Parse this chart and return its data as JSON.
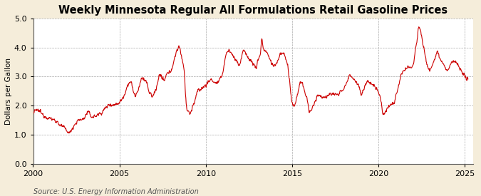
{
  "title": "Weekly Minnesota Regular All Formulations Retail Gasoline Prices",
  "ylabel": "Dollars per Gallon",
  "source": "Source: U.S. Energy Information Administration",
  "xlim": [
    2000,
    2025.5
  ],
  "ylim": [
    0.0,
    5.0
  ],
  "yticks": [
    0.0,
    1.0,
    2.0,
    3.0,
    4.0,
    5.0
  ],
  "xticks": [
    2000,
    2005,
    2010,
    2015,
    2020,
    2025
  ],
  "line_color": "#CC0000",
  "plot_bg_color": "#FFFFFF",
  "fig_bg_color": "#F5EDDA",
  "grid_color": "#AAAAAA",
  "title_fontsize": 10.5,
  "label_fontsize": 7.5,
  "tick_fontsize": 8,
  "source_fontsize": 7,
  "key_points": [
    [
      2000.0,
      1.7
    ],
    [
      2000.08,
      1.8
    ],
    [
      2000.17,
      1.82
    ],
    [
      2000.25,
      1.84
    ],
    [
      2000.33,
      1.82
    ],
    [
      2000.42,
      1.78
    ],
    [
      2000.5,
      1.72
    ],
    [
      2000.58,
      1.68
    ],
    [
      2000.67,
      1.65
    ],
    [
      2000.75,
      1.62
    ],
    [
      2000.83,
      1.6
    ],
    [
      2000.92,
      1.57
    ],
    [
      2001.0,
      1.55
    ],
    [
      2001.17,
      1.52
    ],
    [
      2001.33,
      1.48
    ],
    [
      2001.42,
      1.42
    ],
    [
      2001.58,
      1.32
    ],
    [
      2001.75,
      1.25
    ],
    [
      2001.92,
      1.18
    ],
    [
      2002.0,
      1.1
    ],
    [
      2002.08,
      1.05
    ],
    [
      2002.17,
      1.12
    ],
    [
      2002.33,
      1.28
    ],
    [
      2002.5,
      1.42
    ],
    [
      2002.67,
      1.5
    ],
    [
      2002.83,
      1.52
    ],
    [
      2003.0,
      1.62
    ],
    [
      2003.17,
      1.78
    ],
    [
      2003.33,
      1.65
    ],
    [
      2003.5,
      1.62
    ],
    [
      2003.67,
      1.66
    ],
    [
      2003.83,
      1.72
    ],
    [
      2004.0,
      1.78
    ],
    [
      2004.17,
      1.9
    ],
    [
      2004.33,
      2.0
    ],
    [
      2004.5,
      2.05
    ],
    [
      2004.67,
      2.02
    ],
    [
      2004.83,
      2.06
    ],
    [
      2005.0,
      2.12
    ],
    [
      2005.17,
      2.25
    ],
    [
      2005.33,
      2.45
    ],
    [
      2005.5,
      2.75
    ],
    [
      2005.67,
      2.82
    ],
    [
      2005.75,
      2.6
    ],
    [
      2005.83,
      2.45
    ],
    [
      2005.92,
      2.35
    ],
    [
      2006.0,
      2.42
    ],
    [
      2006.17,
      2.65
    ],
    [
      2006.25,
      2.88
    ],
    [
      2006.33,
      2.98
    ],
    [
      2006.42,
      2.9
    ],
    [
      2006.58,
      2.8
    ],
    [
      2006.67,
      2.55
    ],
    [
      2006.83,
      2.38
    ],
    [
      2006.92,
      2.3
    ],
    [
      2007.0,
      2.42
    ],
    [
      2007.17,
      2.68
    ],
    [
      2007.33,
      3.05
    ],
    [
      2007.42,
      3.0
    ],
    [
      2007.5,
      2.9
    ],
    [
      2007.58,
      2.85
    ],
    [
      2007.75,
      3.08
    ],
    [
      2007.92,
      3.15
    ],
    [
      2008.0,
      3.25
    ],
    [
      2008.17,
      3.55
    ],
    [
      2008.33,
      3.92
    ],
    [
      2008.42,
      3.98
    ],
    [
      2008.5,
      3.95
    ],
    [
      2008.58,
      3.75
    ],
    [
      2008.67,
      3.5
    ],
    [
      2008.75,
      3.2
    ],
    [
      2008.83,
      2.4
    ],
    [
      2008.92,
      1.85
    ],
    [
      2009.0,
      1.8
    ],
    [
      2009.08,
      1.72
    ],
    [
      2009.17,
      1.85
    ],
    [
      2009.33,
      2.1
    ],
    [
      2009.5,
      2.45
    ],
    [
      2009.67,
      2.55
    ],
    [
      2009.83,
      2.62
    ],
    [
      2010.0,
      2.72
    ],
    [
      2010.17,
      2.82
    ],
    [
      2010.33,
      2.9
    ],
    [
      2010.5,
      2.8
    ],
    [
      2010.67,
      2.78
    ],
    [
      2010.83,
      2.9
    ],
    [
      2011.0,
      3.18
    ],
    [
      2011.17,
      3.75
    ],
    [
      2011.33,
      3.9
    ],
    [
      2011.42,
      3.85
    ],
    [
      2011.58,
      3.72
    ],
    [
      2011.67,
      3.62
    ],
    [
      2011.75,
      3.58
    ],
    [
      2011.83,
      3.52
    ],
    [
      2011.92,
      3.4
    ],
    [
      2012.0,
      3.45
    ],
    [
      2012.17,
      3.88
    ],
    [
      2012.33,
      3.8
    ],
    [
      2012.42,
      3.72
    ],
    [
      2012.5,
      3.6
    ],
    [
      2012.67,
      3.5
    ],
    [
      2012.75,
      3.45
    ],
    [
      2012.83,
      3.38
    ],
    [
      2012.92,
      3.28
    ],
    [
      2013.0,
      3.52
    ],
    [
      2013.17,
      3.82
    ],
    [
      2013.25,
      4.3
    ],
    [
      2013.33,
      3.98
    ],
    [
      2013.42,
      3.9
    ],
    [
      2013.5,
      3.85
    ],
    [
      2013.58,
      3.78
    ],
    [
      2013.67,
      3.65
    ],
    [
      2013.75,
      3.55
    ],
    [
      2013.83,
      3.45
    ],
    [
      2013.92,
      3.38
    ],
    [
      2014.0,
      3.38
    ],
    [
      2014.17,
      3.55
    ],
    [
      2014.33,
      3.78
    ],
    [
      2014.42,
      3.8
    ],
    [
      2014.5,
      3.78
    ],
    [
      2014.58,
      3.72
    ],
    [
      2014.67,
      3.55
    ],
    [
      2014.75,
      3.35
    ],
    [
      2014.83,
      2.98
    ],
    [
      2014.92,
      2.42
    ],
    [
      2015.0,
      2.08
    ],
    [
      2015.08,
      1.98
    ],
    [
      2015.17,
      2.05
    ],
    [
      2015.33,
      2.45
    ],
    [
      2015.5,
      2.8
    ],
    [
      2015.58,
      2.78
    ],
    [
      2015.67,
      2.62
    ],
    [
      2015.75,
      2.42
    ],
    [
      2015.83,
      2.28
    ],
    [
      2015.92,
      2.08
    ],
    [
      2016.0,
      1.82
    ],
    [
      2016.08,
      1.8
    ],
    [
      2016.17,
      1.9
    ],
    [
      2016.33,
      2.12
    ],
    [
      2016.5,
      2.38
    ],
    [
      2016.67,
      2.32
    ],
    [
      2016.75,
      2.28
    ],
    [
      2016.83,
      2.3
    ],
    [
      2016.92,
      2.32
    ],
    [
      2017.0,
      2.28
    ],
    [
      2017.17,
      2.38
    ],
    [
      2017.33,
      2.42
    ],
    [
      2017.5,
      2.38
    ],
    [
      2017.67,
      2.35
    ],
    [
      2017.75,
      2.42
    ],
    [
      2017.83,
      2.5
    ],
    [
      2017.92,
      2.55
    ],
    [
      2018.0,
      2.62
    ],
    [
      2018.17,
      2.78
    ],
    [
      2018.33,
      3.02
    ],
    [
      2018.42,
      3.05
    ],
    [
      2018.5,
      2.98
    ],
    [
      2018.58,
      2.92
    ],
    [
      2018.67,
      2.85
    ],
    [
      2018.83,
      2.75
    ],
    [
      2018.92,
      2.55
    ],
    [
      2019.0,
      2.38
    ],
    [
      2019.17,
      2.58
    ],
    [
      2019.33,
      2.82
    ],
    [
      2019.5,
      2.78
    ],
    [
      2019.67,
      2.72
    ],
    [
      2019.75,
      2.68
    ],
    [
      2019.83,
      2.62
    ],
    [
      2019.92,
      2.55
    ],
    [
      2020.0,
      2.5
    ],
    [
      2020.17,
      2.15
    ],
    [
      2020.25,
      1.75
    ],
    [
      2020.33,
      1.72
    ],
    [
      2020.42,
      1.8
    ],
    [
      2020.5,
      1.9
    ],
    [
      2020.67,
      2.0
    ],
    [
      2020.83,
      2.08
    ],
    [
      2020.92,
      2.12
    ],
    [
      2021.0,
      2.28
    ],
    [
      2021.17,
      2.68
    ],
    [
      2021.33,
      3.05
    ],
    [
      2021.42,
      3.15
    ],
    [
      2021.5,
      3.2
    ],
    [
      2021.67,
      3.28
    ],
    [
      2021.75,
      3.32
    ],
    [
      2021.83,
      3.3
    ],
    [
      2021.92,
      3.35
    ],
    [
      2022.0,
      3.4
    ],
    [
      2022.17,
      4.05
    ],
    [
      2022.25,
      4.3
    ],
    [
      2022.33,
      4.7
    ],
    [
      2022.42,
      4.65
    ],
    [
      2022.5,
      4.45
    ],
    [
      2022.58,
      4.15
    ],
    [
      2022.67,
      3.88
    ],
    [
      2022.75,
      3.6
    ],
    [
      2022.83,
      3.42
    ],
    [
      2022.92,
      3.28
    ],
    [
      2023.0,
      3.22
    ],
    [
      2023.08,
      3.3
    ],
    [
      2023.17,
      3.48
    ],
    [
      2023.33,
      3.72
    ],
    [
      2023.42,
      3.85
    ],
    [
      2023.5,
      3.78
    ],
    [
      2023.58,
      3.65
    ],
    [
      2023.67,
      3.52
    ],
    [
      2023.75,
      3.45
    ],
    [
      2023.83,
      3.38
    ],
    [
      2023.92,
      3.25
    ],
    [
      2024.0,
      3.18
    ],
    [
      2024.17,
      3.38
    ],
    [
      2024.33,
      3.52
    ],
    [
      2024.5,
      3.48
    ],
    [
      2024.58,
      3.42
    ],
    [
      2024.67,
      3.32
    ],
    [
      2024.75,
      3.22
    ],
    [
      2024.83,
      3.12
    ],
    [
      2024.92,
      3.05
    ],
    [
      2025.0,
      2.98
    ],
    [
      2025.17,
      2.95
    ]
  ]
}
